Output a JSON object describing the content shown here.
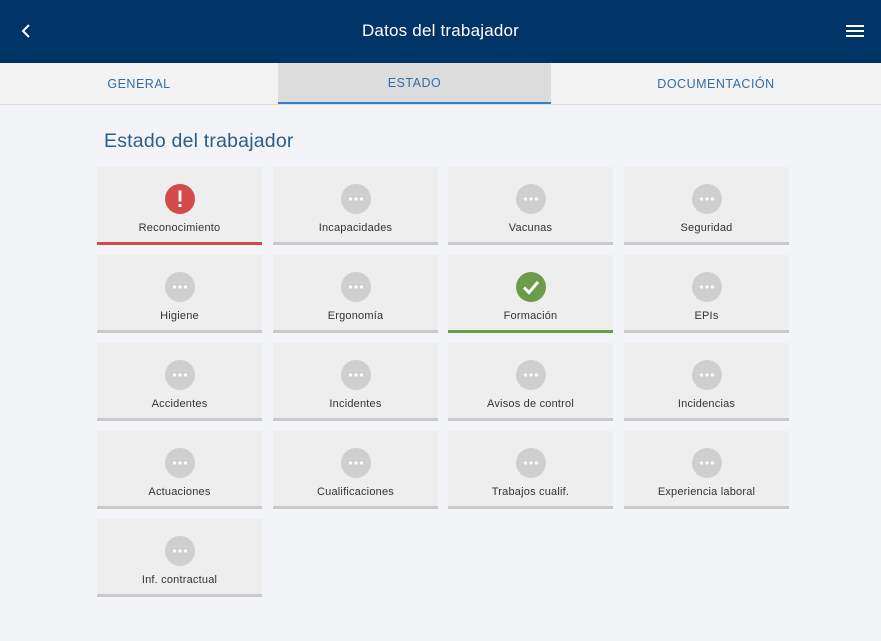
{
  "header": {
    "title": "Datos del trabajador",
    "back_icon": "chevron-left-icon",
    "menu_icon": "hamburger-menu-icon"
  },
  "tabs": [
    {
      "label": "GENERAL",
      "active": false
    },
    {
      "label": "ESTADO",
      "active": true
    },
    {
      "label": "DOCUMENTACIÓN",
      "active": false
    }
  ],
  "section": {
    "title": "Estado del trabajador"
  },
  "colors": {
    "header_bg": "#003366",
    "accent_blue": "#2f80d1",
    "status_error": "#d24b4b",
    "status_ok": "#6d9b4c",
    "status_neutral": "#cfcfcf"
  },
  "cards": [
    {
      "label": "Reconocimiento",
      "status": "error"
    },
    {
      "label": "Incapacidades",
      "status": "pending"
    },
    {
      "label": "Vacunas",
      "status": "pending"
    },
    {
      "label": "Seguridad",
      "status": "pending"
    },
    {
      "label": "Higiene",
      "status": "pending"
    },
    {
      "label": "Ergonomía",
      "status": "pending"
    },
    {
      "label": "Formación",
      "status": "ok"
    },
    {
      "label": "EPIs",
      "status": "pending"
    },
    {
      "label": "Accidentes",
      "status": "pending"
    },
    {
      "label": "Incidentes",
      "status": "pending"
    },
    {
      "label": "Avisos de control",
      "status": "pending"
    },
    {
      "label": "Incidencias",
      "status": "pending"
    },
    {
      "label": "Actuaciones",
      "status": "pending"
    },
    {
      "label": "Cualificaciones",
      "status": "pending"
    },
    {
      "label": "Trabajos cualif.",
      "status": "pending"
    },
    {
      "label": "Experiencia laboral",
      "status": "pending"
    },
    {
      "label": "Inf. contractual",
      "status": "pending"
    }
  ]
}
